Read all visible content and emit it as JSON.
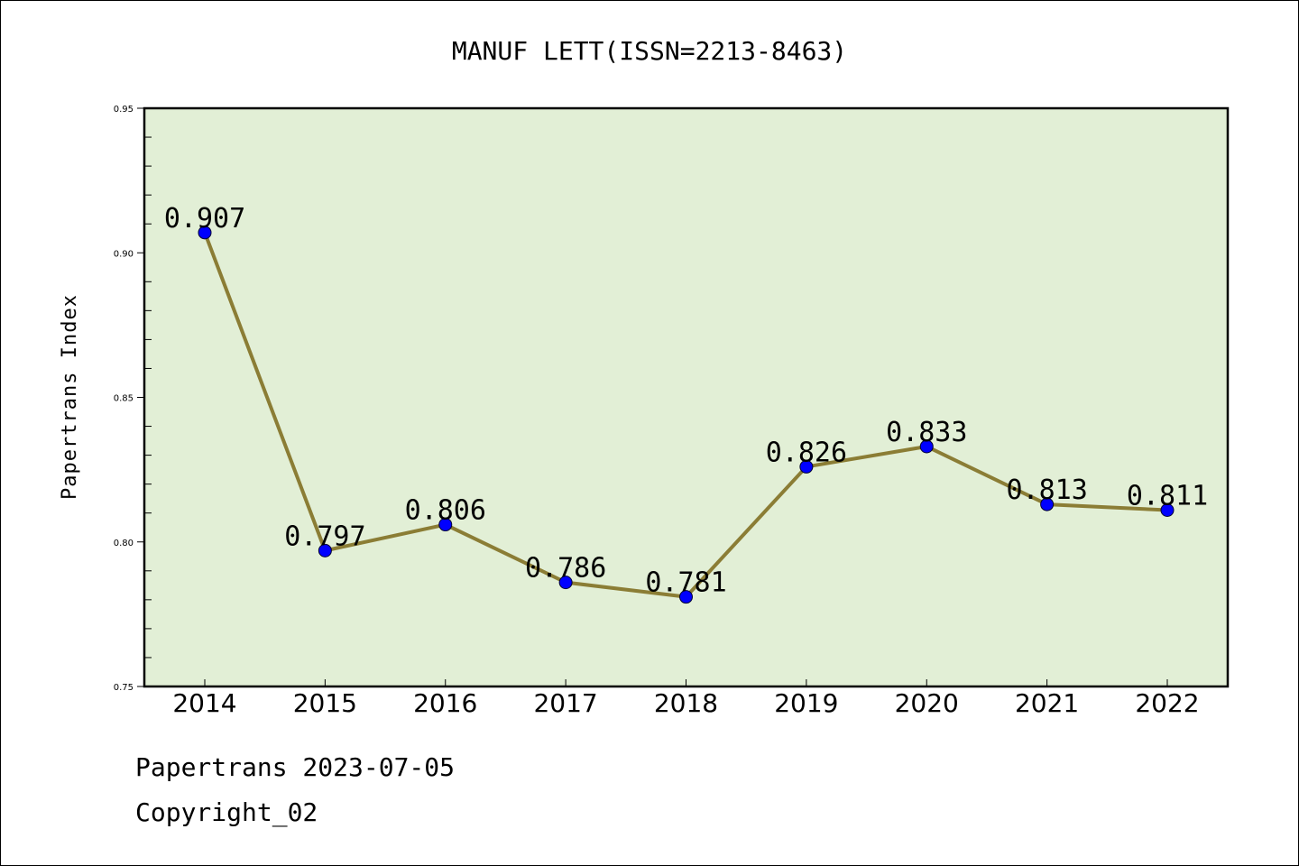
{
  "chart_data": {
    "type": "line",
    "title": "MANUF LETT(ISSN=2213-8463)",
    "ylabel": "Papertrans Index",
    "xlabel": "",
    "categories": [
      "2014",
      "2015",
      "2016",
      "2017",
      "2018",
      "2019",
      "2020",
      "2021",
      "2022"
    ],
    "values": [
      0.907,
      0.797,
      0.806,
      0.786,
      0.781,
      0.826,
      0.833,
      0.813,
      0.811
    ],
    "data_labels": [
      "0.907",
      "0.797",
      "0.806",
      "0.786",
      "0.781",
      "0.826",
      "0.833",
      "0.813",
      "0.811"
    ],
    "ylim": [
      0.75,
      0.95
    ],
    "yticks": [
      0.75,
      0.8,
      0.85,
      0.9,
      0.95
    ],
    "ytick_labels": [
      "0.75",
      "0.80",
      "0.85",
      "0.90",
      "0.95"
    ],
    "grid": false,
    "legend": "none",
    "colors": {
      "plot_background": "#e2efd6",
      "line": "#8b7d35",
      "marker": "#0000ff",
      "axes": "#000000"
    }
  },
  "footer": {
    "date_line": "Papertrans 2023-07-05",
    "copyright": "Copyright_02"
  }
}
